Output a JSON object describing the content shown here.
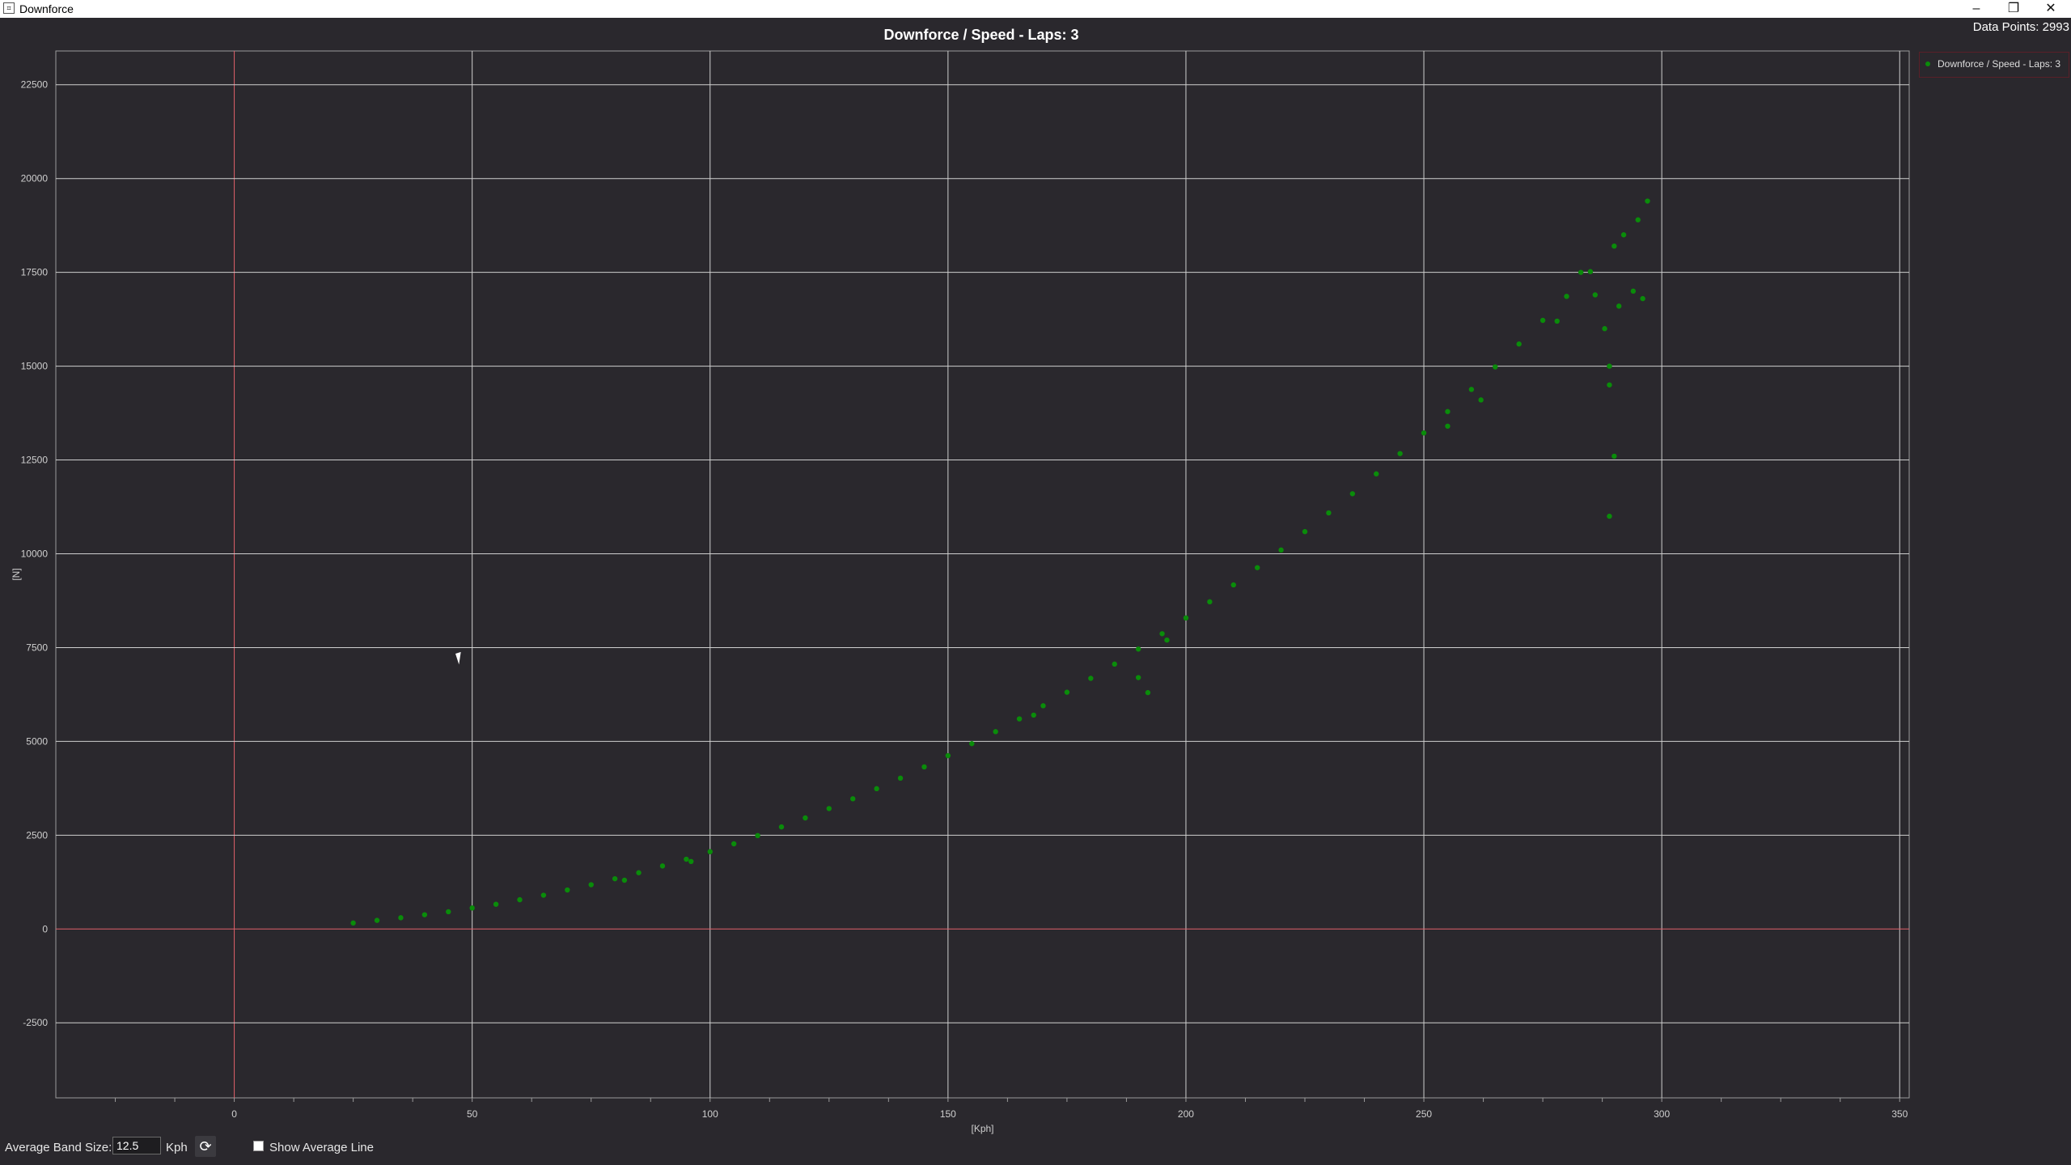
{
  "window": {
    "title": "Downforce",
    "data_points_text": "Data Points: 2993",
    "minimize_label": "–",
    "restore_label": "❐",
    "close_label": "✕"
  },
  "legend": {
    "label": "Downforce / Speed - Laps: 3"
  },
  "controls": {
    "band_size_label": "Average Band Size:",
    "band_size_value": "12.5",
    "band_unit": "Kph",
    "refresh_icon": "⟳",
    "show_avg_label": "Show Average Line",
    "show_avg_checked": false
  },
  "colors": {
    "series": "#0a8c0a",
    "zero_line": "#e0606a",
    "grid": "#cfcfcf",
    "background": "#2a282d"
  },
  "chart_data": {
    "type": "scatter",
    "title": "Downforce / Speed - Laps: 3",
    "xlabel": "[Kph]",
    "ylabel": "[N]",
    "xlim": [
      -37.5,
      352
    ],
    "ylim": [
      -4500,
      23400
    ],
    "x_ticks": [
      0,
      50,
      100,
      150,
      200,
      250,
      300,
      350
    ],
    "y_ticks": [
      -2500,
      0,
      2500,
      5000,
      7500,
      10000,
      12500,
      15000,
      17500,
      20000,
      22500
    ],
    "grid": true,
    "legend_position": "top-right (outside)",
    "series": [
      {
        "name": "Downforce / Speed - Laps: 3",
        "points": [
          [
            25,
            160
          ],
          [
            30,
            230
          ],
          [
            35,
            300
          ],
          [
            40,
            380
          ],
          [
            45,
            460
          ],
          [
            50,
            560
          ],
          [
            55,
            660
          ],
          [
            60,
            780
          ],
          [
            65,
            900
          ],
          [
            70,
            1040
          ],
          [
            75,
            1180
          ],
          [
            80,
            1340
          ],
          [
            85,
            1500
          ],
          [
            90,
            1680
          ],
          [
            95,
            1860
          ],
          [
            100,
            2060
          ],
          [
            105,
            2270
          ],
          [
            110,
            2490
          ],
          [
            115,
            2720
          ],
          [
            120,
            2960
          ],
          [
            125,
            3210
          ],
          [
            130,
            3470
          ],
          [
            135,
            3740
          ],
          [
            140,
            4020
          ],
          [
            145,
            4320
          ],
          [
            150,
            4620
          ],
          [
            155,
            4940
          ],
          [
            160,
            5260
          ],
          [
            165,
            5600
          ],
          [
            170,
            5950
          ],
          [
            175,
            6310
          ],
          [
            180,
            6680
          ],
          [
            185,
            7060
          ],
          [
            190,
            7460
          ],
          [
            195,
            7870
          ],
          [
            200,
            8290
          ],
          [
            205,
            8720
          ],
          [
            210,
            9170
          ],
          [
            215,
            9630
          ],
          [
            220,
            10100
          ],
          [
            225,
            10590
          ],
          [
            230,
            11090
          ],
          [
            235,
            11600
          ],
          [
            240,
            12130
          ],
          [
            245,
            12670
          ],
          [
            250,
            13220
          ],
          [
            255,
            13790
          ],
          [
            260,
            14380
          ],
          [
            265,
            14980
          ],
          [
            270,
            15590
          ],
          [
            275,
            16220
          ],
          [
            280,
            16860
          ],
          [
            285,
            17520
          ],
          [
            290,
            18200
          ],
          [
            295,
            18900
          ],
          [
            297,
            19400
          ],
          [
            82,
            1300
          ],
          [
            96,
            1800
          ],
          [
            190,
            6700
          ],
          [
            192,
            6300
          ],
          [
            196,
            7700
          ],
          [
            168,
            5700
          ],
          [
            255,
            13400
          ],
          [
            262,
            14100
          ],
          [
            278,
            16200
          ],
          [
            286,
            16900
          ],
          [
            288,
            16000
          ],
          [
            289,
            15000
          ],
          [
            289,
            14500
          ],
          [
            290,
            12600
          ],
          [
            289,
            11000
          ],
          [
            291,
            16600
          ],
          [
            294,
            17000
          ],
          [
            296,
            16800
          ],
          [
            283,
            17500
          ],
          [
            292,
            18500
          ]
        ]
      }
    ]
  }
}
